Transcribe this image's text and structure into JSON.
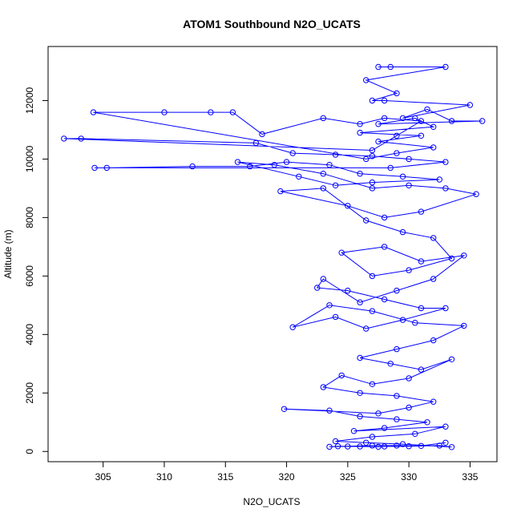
{
  "chart_data": {
    "type": "line",
    "title": "ATOM1 Southbound N2O_UCATS",
    "xlabel": "N2O_UCATS",
    "ylabel": "Altitude (m)",
    "xlim": [
      300.5,
      337.2
    ],
    "ylim": [
      -350,
      13850
    ],
    "x_ticks": [
      305,
      310,
      315,
      320,
      325,
      330,
      335
    ],
    "y_ticks": [
      0,
      2000,
      4000,
      6000,
      8000,
      10000,
      12000
    ],
    "grid": false,
    "legend": "none",
    "line_color": "#0000ff",
    "marker": "open-circle",
    "series": [
      {
        "points": [
          [
            327.5,
            13150
          ],
          [
            328.5,
            13150
          ],
          [
            333.0,
            13150
          ],
          [
            326.5,
            12700
          ],
          [
            329.0,
            12250
          ],
          [
            327.0,
            12000
          ],
          [
            328.0,
            12000
          ],
          [
            335.0,
            11850
          ],
          [
            329.5,
            11400
          ],
          [
            331.5,
            11700
          ],
          [
            333.5,
            11300
          ],
          [
            336.0,
            11300
          ],
          [
            327.5,
            11200
          ],
          [
            330.5,
            11400
          ],
          [
            332.0,
            11100
          ],
          [
            326.0,
            10900
          ],
          [
            331.0,
            10800
          ],
          [
            327.5,
            10600
          ],
          [
            332.0,
            10400
          ],
          [
            329.0,
            10200
          ],
          [
            326.5,
            10000
          ],
          [
            304.2,
            11600
          ],
          [
            310.0,
            11600
          ],
          [
            313.8,
            11600
          ],
          [
            315.6,
            11600
          ],
          [
            318.0,
            10850
          ],
          [
            323.0,
            11400
          ],
          [
            326.0,
            11200
          ],
          [
            328.0,
            11400
          ],
          [
            331.0,
            11300
          ],
          [
            329.0,
            10800
          ],
          [
            327.0,
            10300
          ],
          [
            301.8,
            10700
          ],
          [
            303.2,
            10700
          ],
          [
            317.5,
            10550
          ],
          [
            320.5,
            10200
          ],
          [
            324.0,
            10150
          ],
          [
            327.0,
            10100
          ],
          [
            330.0,
            10000
          ],
          [
            333.0,
            9900
          ],
          [
            328.5,
            9700
          ],
          [
            304.3,
            9700
          ],
          [
            305.3,
            9700
          ],
          [
            312.3,
            9750
          ],
          [
            317.0,
            9750
          ],
          [
            320.0,
            9900
          ],
          [
            323.5,
            9800
          ],
          [
            326.0,
            9500
          ],
          [
            329.5,
            9400
          ],
          [
            332.5,
            9300
          ],
          [
            327.0,
            9200
          ],
          [
            324.0,
            9100
          ],
          [
            321.0,
            9400
          ],
          [
            316.0,
            9900
          ],
          [
            319.0,
            9800
          ],
          [
            323.0,
            9500
          ],
          [
            327.0,
            9000
          ],
          [
            330.0,
            9100
          ],
          [
            333.0,
            9000
          ],
          [
            335.5,
            8800
          ],
          [
            331.0,
            8200
          ],
          [
            328.0,
            8000
          ],
          [
            325.0,
            8400
          ],
          [
            319.5,
            8900
          ],
          [
            323.0,
            9000
          ],
          [
            326.5,
            7900
          ],
          [
            329.5,
            7500
          ],
          [
            332.0,
            7300
          ],
          [
            333.5,
            6600
          ],
          [
            330.0,
            6200
          ],
          [
            327.0,
            6000
          ],
          [
            324.5,
            6800
          ],
          [
            328.0,
            7000
          ],
          [
            331.0,
            6500
          ],
          [
            334.5,
            6700
          ],
          [
            332.0,
            5900
          ],
          [
            329.0,
            5500
          ],
          [
            326.0,
            5100
          ],
          [
            323.0,
            5900
          ],
          [
            322.5,
            5600
          ],
          [
            325.0,
            5500
          ],
          [
            328.0,
            5200
          ],
          [
            331.0,
            4900
          ],
          [
            333.0,
            4900
          ],
          [
            329.5,
            4500
          ],
          [
            326.5,
            4200
          ],
          [
            324.0,
            4600
          ],
          [
            320.5,
            4250
          ],
          [
            323.5,
            5000
          ],
          [
            327.0,
            4800
          ],
          [
            330.5,
            4400
          ],
          [
            334.5,
            4300
          ],
          [
            332.0,
            3800
          ],
          [
            329.0,
            3500
          ],
          [
            326.0,
            3200
          ],
          [
            328.5,
            3000
          ],
          [
            331.0,
            2800
          ],
          [
            333.5,
            3150
          ],
          [
            330.0,
            2500
          ],
          [
            327.0,
            2300
          ],
          [
            324.5,
            2600
          ],
          [
            323.0,
            2200
          ],
          [
            326.0,
            2000
          ],
          [
            329.0,
            1900
          ],
          [
            332.0,
            1700
          ],
          [
            330.0,
            1500
          ],
          [
            327.5,
            1300
          ],
          [
            319.8,
            1450
          ],
          [
            323.5,
            1400
          ],
          [
            326.0,
            1200
          ],
          [
            329.0,
            1100
          ],
          [
            331.5,
            1000
          ],
          [
            328.0,
            800
          ],
          [
            325.5,
            700
          ],
          [
            333.0,
            850
          ],
          [
            330.5,
            600
          ],
          [
            327.0,
            500
          ],
          [
            324.0,
            350
          ],
          [
            326.5,
            300
          ],
          [
            329.5,
            250
          ],
          [
            333.5,
            150
          ],
          [
            332.5,
            200
          ],
          [
            330.0,
            180
          ],
          [
            328.0,
            170
          ],
          [
            327.5,
            160
          ],
          [
            326.0,
            170
          ],
          [
            325.0,
            170
          ],
          [
            324.2,
            180
          ],
          [
            323.5,
            160
          ],
          [
            327.0,
            200
          ],
          [
            329.0,
            200
          ],
          [
            331.0,
            190
          ],
          [
            333.0,
            300
          ]
        ]
      }
    ]
  }
}
